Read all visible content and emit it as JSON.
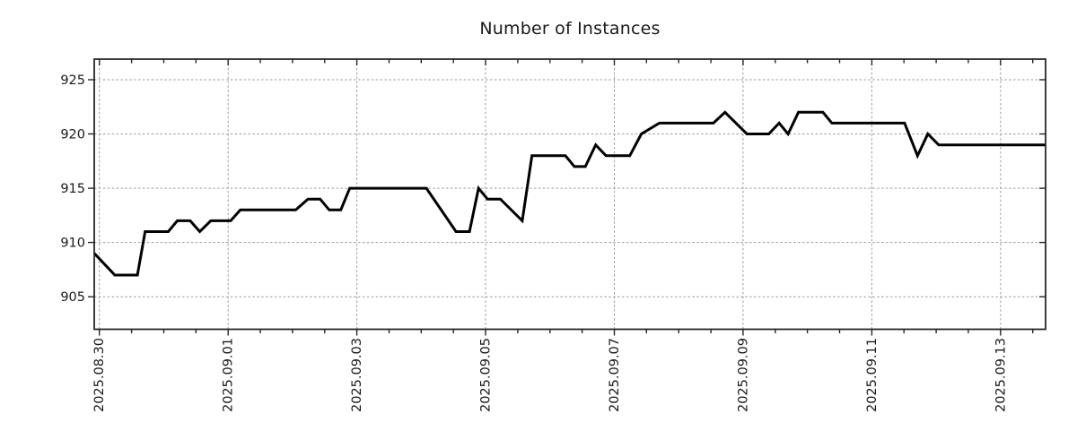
{
  "chart_data": {
    "type": "line",
    "title": "Number of Instances",
    "xlabel": "",
    "ylabel": "",
    "grid": true,
    "legend": null,
    "x_axis": {
      "unit": "days since 2025.08.30",
      "xlim_days": [
        -0.08,
        14.7
      ],
      "minor_tick_step_days": 0.5,
      "major_ticks": [
        {
          "day": 0,
          "label": "2025.08.30"
        },
        {
          "day": 2,
          "label": "2025.09.01"
        },
        {
          "day": 4,
          "label": "2025.09.03"
        },
        {
          "day": 6,
          "label": "2025.09.05"
        },
        {
          "day": 8,
          "label": "2025.09.07"
        },
        {
          "day": 10,
          "label": "2025.09.09"
        },
        {
          "day": 12,
          "label": "2025.09.11"
        },
        {
          "day": 14,
          "label": "2025.09.13"
        }
      ]
    },
    "y_axis": {
      "ticks": [
        905,
        910,
        915,
        920,
        925
      ],
      "ylim": [
        902.0,
        926.9
      ]
    },
    "series": [
      {
        "name": "Number of Instances",
        "color": "#000000",
        "points": [
          [
            -0.08,
            909
          ],
          [
            0.24,
            907
          ],
          [
            0.59,
            907
          ],
          [
            0.71,
            911
          ],
          [
            1.07,
            911
          ],
          [
            1.21,
            912
          ],
          [
            1.41,
            912
          ],
          [
            1.56,
            911
          ],
          [
            1.73,
            912
          ],
          [
            2.04,
            912
          ],
          [
            2.19,
            913
          ],
          [
            3.05,
            913
          ],
          [
            3.24,
            914
          ],
          [
            3.43,
            914
          ],
          [
            3.57,
            913
          ],
          [
            3.75,
            913
          ],
          [
            3.89,
            915
          ],
          [
            5.08,
            915
          ],
          [
            5.54,
            911
          ],
          [
            5.75,
            911
          ],
          [
            5.89,
            915
          ],
          [
            6.03,
            914
          ],
          [
            6.23,
            914
          ],
          [
            6.57,
            912
          ],
          [
            6.72,
            918
          ],
          [
            7.24,
            918
          ],
          [
            7.38,
            917
          ],
          [
            7.55,
            917
          ],
          [
            7.71,
            919
          ],
          [
            7.87,
            918
          ],
          [
            8.24,
            918
          ],
          [
            8.42,
            920
          ],
          [
            8.7,
            921
          ],
          [
            9.54,
            921
          ],
          [
            9.72,
            922
          ],
          [
            10.06,
            920
          ],
          [
            10.4,
            920
          ],
          [
            10.56,
            921
          ],
          [
            10.7,
            920
          ],
          [
            10.86,
            922
          ],
          [
            11.24,
            922
          ],
          [
            11.38,
            921
          ],
          [
            12.51,
            921
          ],
          [
            12.71,
            918
          ],
          [
            12.87,
            920
          ],
          [
            13.04,
            919
          ],
          [
            14.7,
            919
          ]
        ]
      }
    ]
  },
  "style": {
    "background": "#ffffff",
    "line_color": "#000000",
    "grid_color": "#9a9a9a",
    "axis_color": "#262626",
    "text_color": "#1a1a1a"
  }
}
